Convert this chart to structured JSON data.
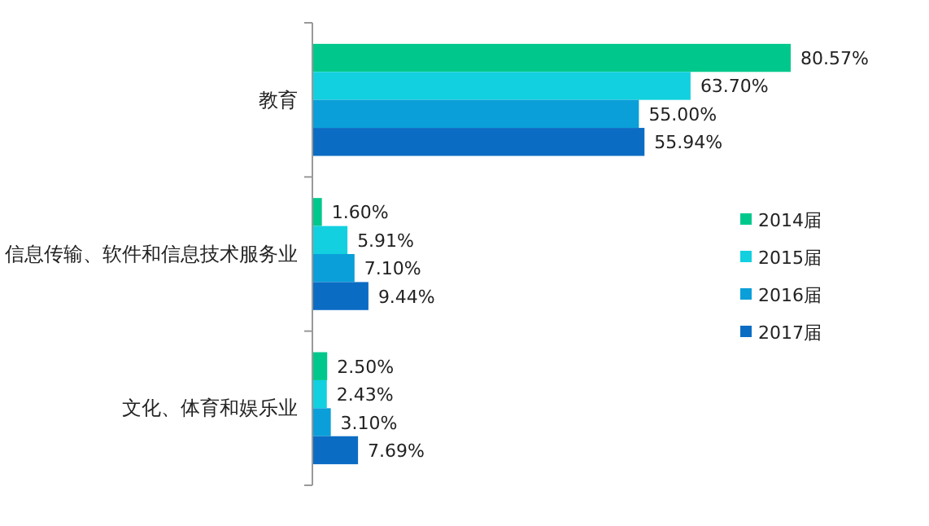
{
  "chart_data": {
    "type": "bar",
    "orientation": "horizontal",
    "categories": [
      "教育",
      "信息传输、软件和信息技术服务业",
      "文化、体育和娱乐业"
    ],
    "series": [
      {
        "name": "2014届",
        "color": "#00c88c",
        "values": [
          80.57,
          1.6,
          2.5
        ],
        "value_labels": [
          "80.57%",
          "1.60%",
          "2.50%"
        ]
      },
      {
        "name": "2015届",
        "color": "#12d0df",
        "values": [
          63.7,
          5.91,
          2.43
        ],
        "value_labels": [
          "63.70%",
          "5.91%",
          "2.43%"
        ]
      },
      {
        "name": "2016届",
        "color": "#0a9fd8",
        "values": [
          55.0,
          7.1,
          3.1
        ],
        "value_labels": [
          "55.00%",
          "7.10%",
          "3.10%"
        ]
      },
      {
        "name": "2017届",
        "color": "#0b6cc4",
        "values": [
          55.94,
          9.44,
          7.69
        ],
        "value_labels": [
          "55.94%",
          "9.44%",
          "7.69%"
        ]
      }
    ],
    "legend": "right",
    "grid": false
  }
}
